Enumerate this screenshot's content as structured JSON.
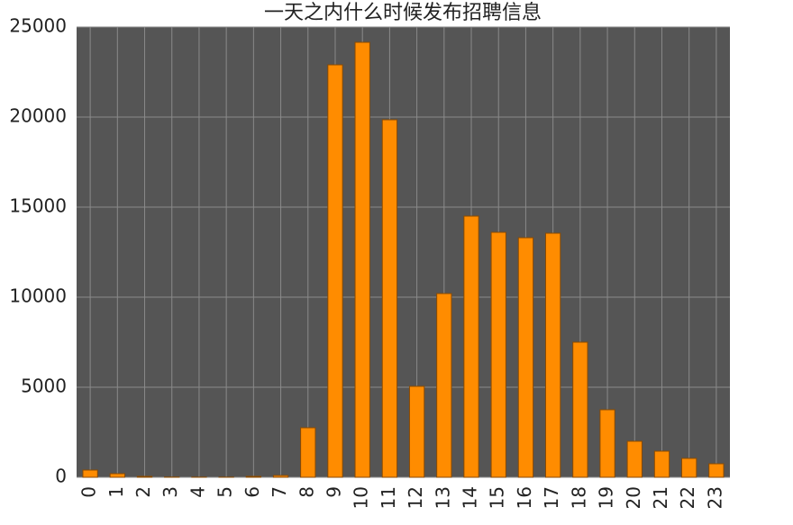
{
  "chart_data": {
    "type": "bar",
    "title": "一天之内什么时候发布招聘信息",
    "categories": [
      "0",
      "1",
      "2",
      "3",
      "4",
      "5",
      "6",
      "7",
      "8",
      "9",
      "10",
      "11",
      "12",
      "13",
      "14",
      "15",
      "16",
      "17",
      "18",
      "19",
      "20",
      "21",
      "22",
      "23"
    ],
    "values": [
      400,
      200,
      50,
      10,
      5,
      5,
      50,
      100,
      2750,
      22900,
      24150,
      19850,
      5050,
      10200,
      14500,
      13600,
      13300,
      13550,
      7500,
      3750,
      2000,
      1450,
      1050,
      750
    ],
    "color": "#ff8c00",
    "ylim": [
      0,
      25000
    ],
    "yticks": [
      0,
      5000,
      10000,
      15000,
      20000,
      25000
    ],
    "grid": true
  }
}
